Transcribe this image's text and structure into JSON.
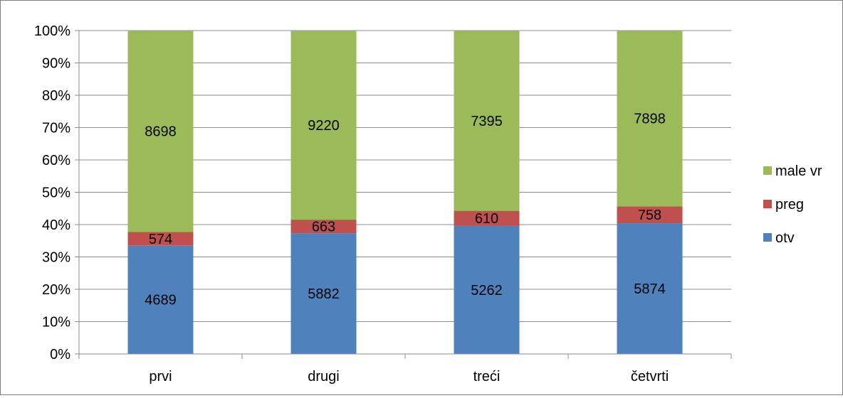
{
  "chart_data": {
    "type": "bar",
    "stacked": true,
    "normalized": true,
    "categories": [
      "prvi",
      "drugi",
      "treći",
      "četvrti"
    ],
    "series": [
      {
        "name": "otv",
        "values": [
          4689,
          5882,
          5262,
          5874
        ],
        "color": "#4f81bd"
      },
      {
        "name": "preg",
        "values": [
          574,
          663,
          610,
          758
        ],
        "color": "#c0504d"
      },
      {
        "name": "male vr",
        "values": [
          8698,
          9220,
          7395,
          7898
        ],
        "color": "#9bbb59"
      }
    ],
    "y_ticks": [
      "0%",
      "10%",
      "20%",
      "30%",
      "40%",
      "50%",
      "60%",
      "70%",
      "80%",
      "90%",
      "100%"
    ],
    "ylim": [
      0,
      100
    ],
    "grid": true,
    "legend_position": "right",
    "legend_order": [
      "male vr",
      "preg",
      "otv"
    ]
  }
}
